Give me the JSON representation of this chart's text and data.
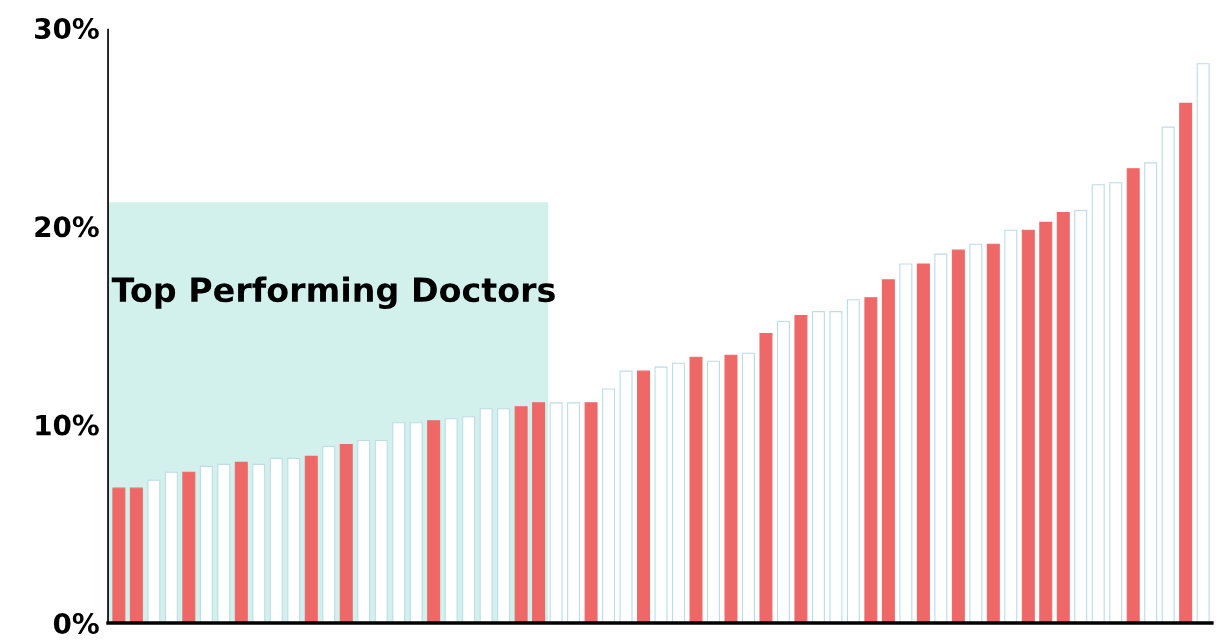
{
  "chart_data": {
    "type": "bar",
    "categories": [
      null,
      null,
      null,
      null,
      null,
      null,
      null,
      null,
      null,
      null,
      null,
      null,
      null,
      null,
      null,
      null,
      null,
      null,
      null,
      null,
      null,
      null,
      null,
      null,
      null,
      null,
      null,
      null,
      null,
      null,
      null,
      null,
      null,
      null,
      null,
      null,
      null,
      null,
      null,
      null,
      null,
      null,
      null,
      null,
      null,
      null,
      null,
      null,
      null,
      null,
      null,
      null,
      null,
      null,
      null,
      null,
      null,
      null,
      null,
      null,
      null,
      null,
      null
    ],
    "values": [
      6.8,
      6.8,
      7.2,
      7.6,
      7.6,
      7.9,
      8.0,
      8.1,
      8.0,
      8.3,
      8.3,
      8.4,
      8.9,
      9.0,
      9.2,
      9.2,
      10.1,
      10.1,
      10.2,
      10.3,
      10.4,
      10.8,
      10.8,
      10.9,
      11.1,
      11.1,
      11.1,
      11.1,
      11.8,
      12.7,
      12.7,
      12.9,
      13.1,
      13.4,
      13.2,
      13.5,
      13.6,
      14.6,
      15.2,
      15.5,
      15.7,
      15.7,
      16.3,
      16.4,
      17.3,
      18.1,
      18.1,
      18.6,
      18.8,
      19.1,
      19.1,
      19.8,
      19.8,
      20.2,
      20.7,
      20.8,
      22.1,
      22.2,
      22.9,
      23.2,
      25.0,
      26.2,
      28.2
    ],
    "colors": [
      "#ef6868",
      "#ef6868",
      "#ffffff",
      "#ffffff",
      "#ef6868",
      "#ffffff",
      "#ffffff",
      "#ef6868",
      "#ffffff",
      "#ffffff",
      "#ffffff",
      "#ef6868",
      "#ffffff",
      "#ef6868",
      "#ffffff",
      "#ffffff",
      "#ffffff",
      "#ffffff",
      "#ef6868",
      "#ffffff",
      "#ffffff",
      "#ffffff",
      "#ffffff",
      "#ef6868",
      "#ef6868",
      "#ffffff",
      "#ffffff",
      "#ef6868",
      "#ffffff",
      "#ffffff",
      "#ef6868",
      "#ffffff",
      "#ffffff",
      "#ef6868",
      "#ffffff",
      "#ef6868",
      "#ffffff",
      "#ef6868",
      "#ffffff",
      "#ef6868",
      "#ffffff",
      "#ffffff",
      "#ffffff",
      "#ef6868",
      "#ef6868",
      "#ffffff",
      "#ef6868",
      "#ffffff",
      "#ef6868",
      "#ffffff",
      "#ef6868",
      "#ffffff",
      "#ef6868",
      "#ef6868",
      "#ef6868",
      "#ffffff",
      "#ffffff",
      "#ffffff",
      "#ef6868",
      "#ffffff",
      "#ffffff",
      "#ef6868",
      "#ffffff"
    ],
    "ylim": [
      0,
      30
    ],
    "yticks": [
      {
        "value": 0,
        "label": "0%"
      },
      {
        "value": 10,
        "label": "10%"
      },
      {
        "value": 20,
        "label": "20%"
      },
      {
        "value": 30,
        "label": "30%"
      }
    ],
    "annotations": [
      "Top Performing Doctors"
    ],
    "grid": false,
    "legend": false
  }
}
